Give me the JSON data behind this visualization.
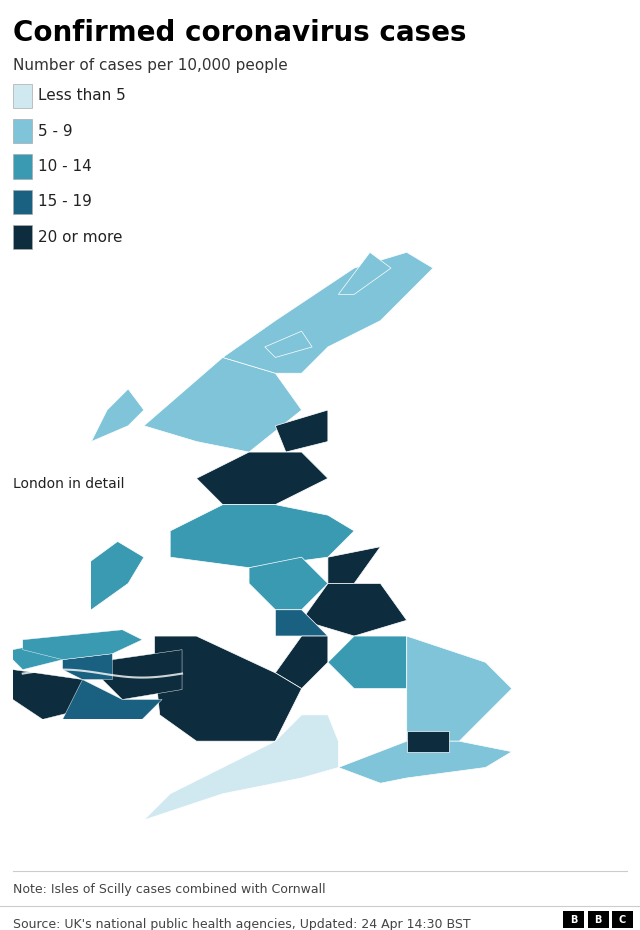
{
  "title": "Confirmed coronavirus cases",
  "subtitle": "Number of cases per 10,000 people",
  "legend_labels": [
    "Less than 5",
    "5 - 9",
    "10 - 14",
    "15 - 19",
    "20 or more"
  ],
  "legend_colors": [
    "#d0e8f0",
    "#7fc4d8",
    "#3a9ab2",
    "#1a6080",
    "#0d2d3e"
  ],
  "note": "Note: Isles of Scilly cases combined with Cornwall",
  "source": "Source: UK's national public health agencies, Updated: 24 Apr 14:30 BST",
  "london_label": "London in detail",
  "background_color": "#ffffff",
  "title_fontsize": 20,
  "subtitle_fontsize": 11,
  "legend_fontsize": 11,
  "note_fontsize": 9,
  "source_fontsize": 9,
  "bbc_logo_text": "BBC",
  "color_bins": [
    5,
    10,
    15,
    20
  ],
  "bin_colors": [
    "#d0e8f0",
    "#7fc4d8",
    "#3a9ab2",
    "#1a6080",
    "#0d2d3e"
  ],
  "edge_color": "#ffffff",
  "edge_linewidth": 0.5,
  "figsize": [
    6.4,
    9.3
  ],
  "dpi": 100
}
